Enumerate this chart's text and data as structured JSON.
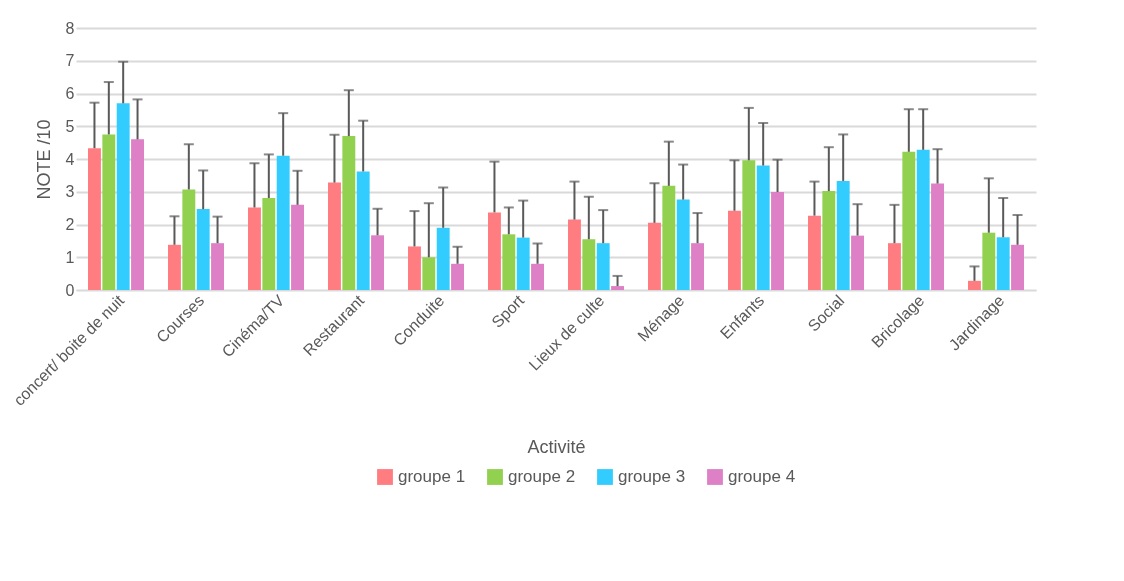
{
  "chart_data": {
    "type": "bar",
    "xlabel": "Activité",
    "ylabel": "NOTE /10",
    "categories": [
      "concert/ boite de nuit",
      "Courses",
      "Cinéma/TV",
      "Restaurant",
      "Conduite",
      "Sport",
      "Lieux de culte",
      "Ménage",
      "Enfants",
      "Social",
      "Bricolage",
      "Jardinage"
    ],
    "series": [
      {
        "name": "groupe 1",
        "color": "#ff7c80",
        "values": [
          4.33,
          1.38,
          2.52,
          3.28,
          1.33,
          2.37,
          2.15,
          2.05,
          2.42,
          2.27,
          1.43,
          0.28
        ],
        "errors": [
          [
            4.33,
            5.72
          ],
          [
            1.38,
            2.25
          ],
          [
            2.52,
            3.87
          ],
          [
            3.28,
            4.74
          ],
          [
            1.33,
            2.41
          ],
          [
            2.37,
            3.92
          ],
          [
            2.15,
            3.31
          ],
          [
            2.05,
            3.26
          ],
          [
            2.42,
            3.96
          ],
          [
            2.27,
            3.31
          ],
          [
            1.43,
            2.6
          ],
          [
            0.28,
            0.72
          ]
        ]
      },
      {
        "name": "groupe 2",
        "color": "#92d050",
        "values": [
          4.75,
          3.07,
          2.81,
          4.7,
          1.0,
          1.7,
          1.55,
          3.18,
          3.96,
          3.02,
          4.22,
          1.75
        ],
        "errors": [
          [
            4.75,
            6.35
          ],
          [
            3.07,
            4.45
          ],
          [
            2.81,
            4.14
          ],
          [
            4.7,
            6.1
          ],
          [
            1.0,
            2.65
          ],
          [
            1.7,
            2.52
          ],
          [
            1.55,
            2.85
          ],
          [
            3.18,
            4.53
          ],
          [
            3.96,
            5.56
          ],
          [
            3.02,
            4.36
          ],
          [
            4.22,
            5.52
          ],
          [
            1.75,
            3.41
          ]
        ]
      },
      {
        "name": "groupe 3",
        "color": "#33ccff",
        "values": [
          5.7,
          2.47,
          4.1,
          3.62,
          1.9,
          1.6,
          1.43,
          2.76,
          3.8,
          3.33,
          4.28,
          1.61
        ],
        "errors": [
          [
            5.7,
            6.97
          ],
          [
            2.47,
            3.65
          ],
          [
            4.1,
            5.4
          ],
          [
            3.62,
            5.17
          ],
          [
            1.9,
            3.13
          ],
          [
            1.6,
            2.73
          ],
          [
            1.43,
            2.44
          ],
          [
            2.76,
            3.83
          ],
          [
            3.8,
            5.1
          ],
          [
            3.33,
            4.75
          ],
          [
            4.28,
            5.52
          ],
          [
            1.61,
            2.81
          ]
        ]
      },
      {
        "name": "groupe 4",
        "color": "#dd80c5",
        "values": [
          4.6,
          1.43,
          2.6,
          1.67,
          0.8,
          0.8,
          0.12,
          1.43,
          2.99,
          1.66,
          3.25,
          1.38
        ],
        "errors": [
          [
            4.6,
            5.82
          ],
          [
            1.43,
            2.24
          ],
          [
            2.6,
            3.64
          ],
          [
            1.67,
            2.48
          ],
          [
            0.8,
            1.32
          ],
          [
            0.8,
            1.42
          ],
          [
            0.12,
            0.43
          ],
          [
            1.43,
            2.35
          ],
          [
            2.99,
            3.98
          ],
          [
            1.66,
            2.62
          ],
          [
            3.25,
            4.3
          ],
          [
            1.38,
            2.29
          ]
        ]
      }
    ],
    "ylim": [
      0,
      8
    ],
    "yticks": [
      0,
      1,
      2,
      3,
      4,
      5,
      6,
      7,
      8
    ],
    "grid": "y",
    "legend": "bottom"
  }
}
